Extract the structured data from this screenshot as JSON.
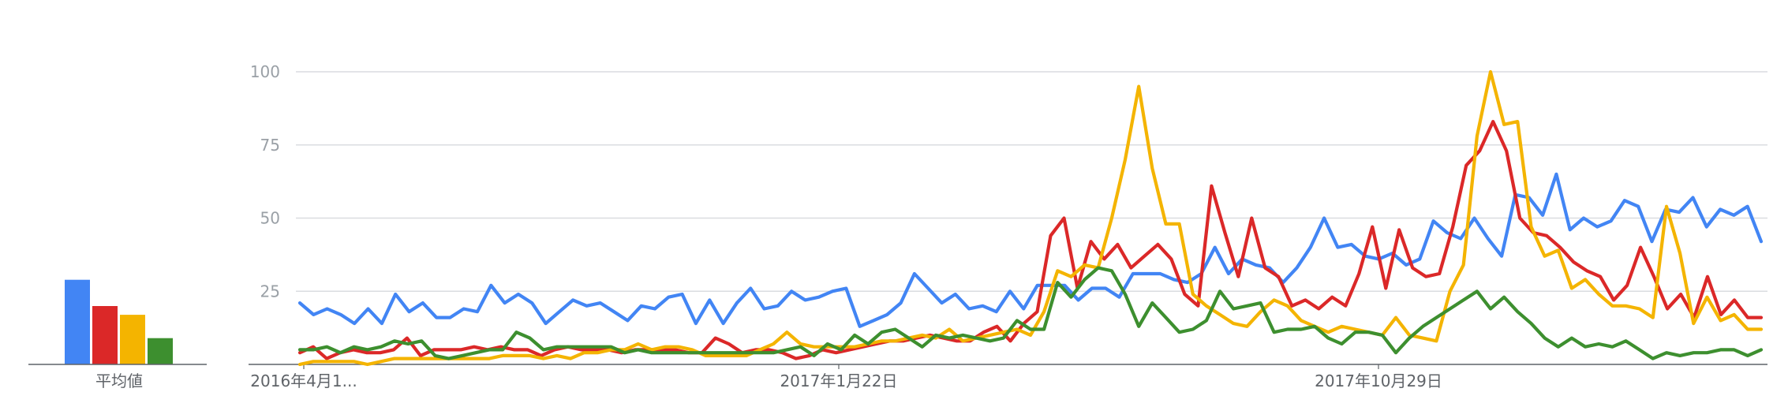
{
  "chart_data": {
    "type": "line",
    "average_label": "平均値",
    "averages": [
      {
        "color": "#4285f4",
        "value": 29
      },
      {
        "color": "#db2828",
        "value": 20
      },
      {
        "color": "#f4b400",
        "value": 17
      },
      {
        "color": "#3d8f2f",
        "value": 9
      }
    ],
    "x_tick_labels": [
      "2016年4月1...",
      "2017年1月22日",
      "2017年10月29日"
    ],
    "y_ticks": [
      25,
      50,
      75,
      100
    ],
    "ylim": [
      0,
      100
    ],
    "grid": true,
    "series": [
      {
        "color": "#4285f4",
        "values": [
          21,
          17,
          19,
          17,
          14,
          19,
          14,
          24,
          18,
          21,
          16,
          16,
          19,
          18,
          27,
          21,
          24,
          21,
          14,
          18,
          22,
          20,
          21,
          18,
          15,
          20,
          19,
          23,
          24,
          14,
          22,
          14,
          21,
          26,
          19,
          20,
          25,
          22,
          23,
          25,
          26,
          13,
          15,
          17,
          21,
          31,
          26,
          21,
          24,
          19,
          20,
          18,
          25,
          19,
          27,
          27,
          27,
          22,
          26,
          26,
          23,
          31,
          31,
          31,
          29,
          28,
          31,
          40,
          31,
          36,
          34,
          33,
          28,
          33,
          40,
          50,
          40,
          41,
          37,
          36,
          38,
          34,
          36,
          49,
          45,
          43,
          50,
          43,
          37,
          58,
          57,
          51,
          65,
          46,
          50,
          47,
          49,
          56,
          54,
          42,
          53,
          52,
          57,
          47,
          53,
          51,
          54,
          42
        ]
      },
      {
        "color": "#db2828",
        "values": [
          4,
          6,
          2,
          4,
          5,
          4,
          4,
          5,
          9,
          3,
          5,
          5,
          5,
          6,
          5,
          6,
          5,
          5,
          3,
          5,
          6,
          5,
          5,
          5,
          4,
          5,
          5,
          5,
          5,
          4,
          4,
          9,
          7,
          4,
          5,
          5,
          4,
          2,
          3,
          5,
          4,
          5,
          6,
          7,
          8,
          8,
          9,
          10,
          9,
          8,
          8,
          11,
          13,
          8,
          14,
          18,
          44,
          50,
          26,
          42,
          36,
          41,
          33,
          37,
          41,
          36,
          24,
          20,
          61,
          45,
          30,
          50,
          33,
          30,
          20,
          22,
          19,
          23,
          20,
          31,
          47,
          26,
          46,
          33,
          30,
          31,
          47,
          68,
          73,
          83,
          73,
          50,
          45,
          44,
          40,
          35,
          32,
          30,
          22,
          27,
          40,
          30,
          19,
          24,
          16,
          30,
          17,
          22,
          16,
          16
        ]
      },
      {
        "color": "#f4b400",
        "values": [
          0,
          1,
          1,
          1,
          1,
          0,
          1,
          2,
          2,
          2,
          2,
          2,
          2,
          2,
          2,
          3,
          3,
          3,
          2,
          3,
          2,
          4,
          4,
          5,
          5,
          7,
          5,
          6,
          6,
          5,
          3,
          3,
          3,
          3,
          5,
          7,
          11,
          7,
          6,
          6,
          6,
          6,
          7,
          8,
          8,
          9,
          10,
          9,
          12,
          8,
          9,
          10,
          11,
          12,
          10,
          18,
          32,
          30,
          34,
          33,
          50,
          70,
          95,
          67,
          48,
          48,
          24,
          20,
          17,
          14,
          13,
          18,
          22,
          20,
          15,
          13,
          11,
          13,
          12,
          11,
          10,
          16,
          10,
          9,
          8,
          25,
          34,
          78,
          100,
          82,
          83,
          47,
          37,
          39,
          26,
          29,
          24,
          20,
          20,
          19,
          16,
          54,
          38,
          14,
          23,
          15,
          17,
          12,
          12
        ]
      },
      {
        "color": "#3d8f2f",
        "values": [
          5,
          5,
          6,
          4,
          6,
          5,
          6,
          8,
          7,
          8,
          3,
          2,
          3,
          4,
          5,
          5,
          11,
          9,
          5,
          6,
          6,
          6,
          6,
          6,
          4,
          5,
          4,
          4,
          4,
          4,
          4,
          4,
          4,
          4,
          4,
          4,
          5,
          6,
          3,
          7,
          5,
          10,
          7,
          11,
          12,
          9,
          6,
          10,
          9,
          10,
          9,
          8,
          9,
          15,
          12,
          12,
          28,
          23,
          29,
          33,
          32,
          24,
          13,
          21,
          16,
          11,
          12,
          15,
          25,
          19,
          20,
          21,
          11,
          12,
          12,
          13,
          9,
          7,
          11,
          11,
          10,
          4,
          9,
          13,
          16,
          19,
          22,
          25,
          19,
          23,
          18,
          14,
          9,
          6,
          9,
          6,
          7,
          6,
          8,
          5,
          2,
          4,
          3,
          4,
          4,
          5,
          5,
          3,
          5
        ]
      }
    ]
  }
}
